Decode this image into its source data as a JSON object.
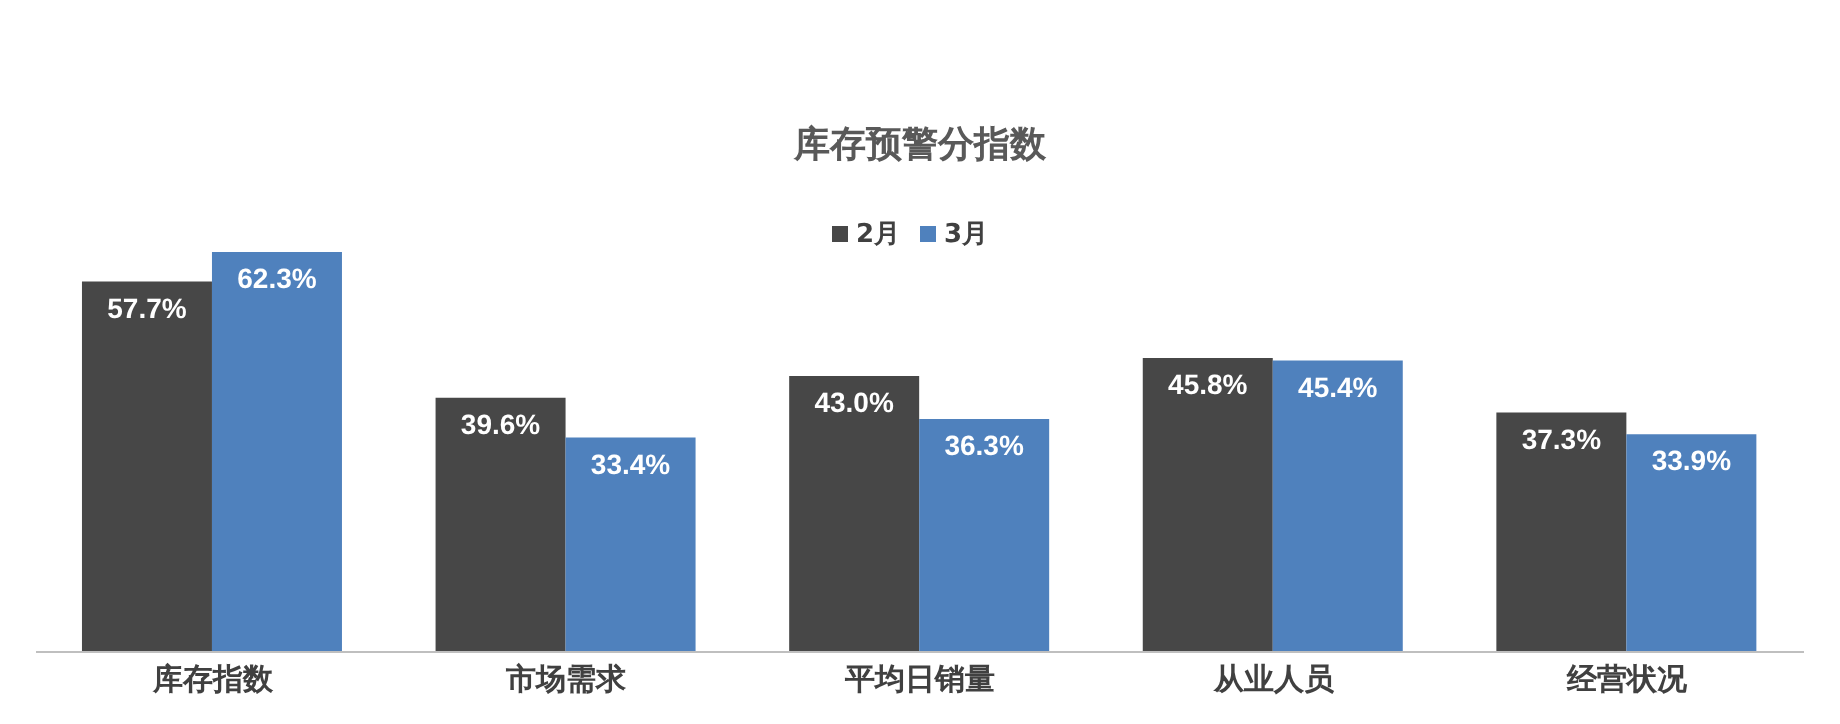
{
  "chart_data": {
    "type": "bar",
    "title": "库存预警分指数",
    "categories": [
      "库存指数",
      "市场需求",
      "平均日销量",
      "从业人员",
      "经营状况"
    ],
    "legend": "top",
    "series": [
      {
        "name": "2月",
        "color": "#474747",
        "values": [
          57.7,
          39.6,
          43.0,
          45.8,
          37.3
        ],
        "value_labels": [
          "57.7%",
          "39.6%",
          "43.0%",
          "45.8%",
          "37.3%"
        ]
      },
      {
        "name": "3月",
        "color": "#4f81bd",
        "values": [
          62.3,
          33.4,
          36.3,
          45.4,
          33.9
        ],
        "value_labels": [
          "62.3%",
          "33.4%",
          "36.3%",
          "45.4%",
          "33.9%"
        ]
      }
    ]
  }
}
